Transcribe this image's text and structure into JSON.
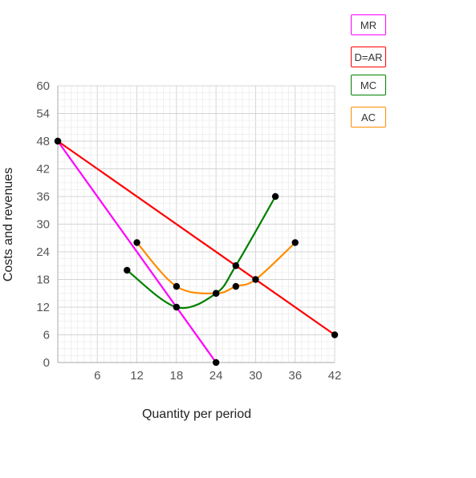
{
  "chart_data": {
    "type": "line",
    "title": "",
    "xlabel": "Quantity per period",
    "ylabel": "Costs and revenues",
    "xlim": [
      0,
      42
    ],
    "ylim": [
      0,
      60
    ],
    "x_ticks": [
      6,
      12,
      18,
      24,
      30,
      36,
      42
    ],
    "y_ticks": [
      0,
      6,
      12,
      18,
      24,
      30,
      36,
      42,
      48,
      54,
      60
    ],
    "grid": true,
    "legend_position": "top-right",
    "series": [
      {
        "name": "MR",
        "color": "#ff00ff",
        "points": [
          [
            0,
            48
          ],
          [
            24,
            0
          ]
        ]
      },
      {
        "name": "D=AR",
        "color": "#ff0000",
        "points": [
          [
            0,
            48
          ],
          [
            42,
            6
          ]
        ]
      },
      {
        "name": "MC",
        "color": "#008000",
        "points": [
          [
            10.5,
            20
          ],
          [
            18,
            12
          ],
          [
            24,
            15
          ],
          [
            27,
            21
          ],
          [
            33,
            36
          ]
        ]
      },
      {
        "name": "AC",
        "color": "#ff8c00",
        "points": [
          [
            12,
            26
          ],
          [
            18,
            16.5
          ],
          [
            24,
            15
          ],
          [
            27,
            16.5
          ],
          [
            30,
            18
          ],
          [
            36,
            26
          ]
        ]
      }
    ]
  },
  "legend": [
    {
      "name": "MR",
      "color": "#ff00ff"
    },
    {
      "name": "D=AR",
      "color": "#ff0000"
    },
    {
      "name": "MC",
      "color": "#008000"
    },
    {
      "name": "AC",
      "color": "#ff8c00"
    }
  ]
}
